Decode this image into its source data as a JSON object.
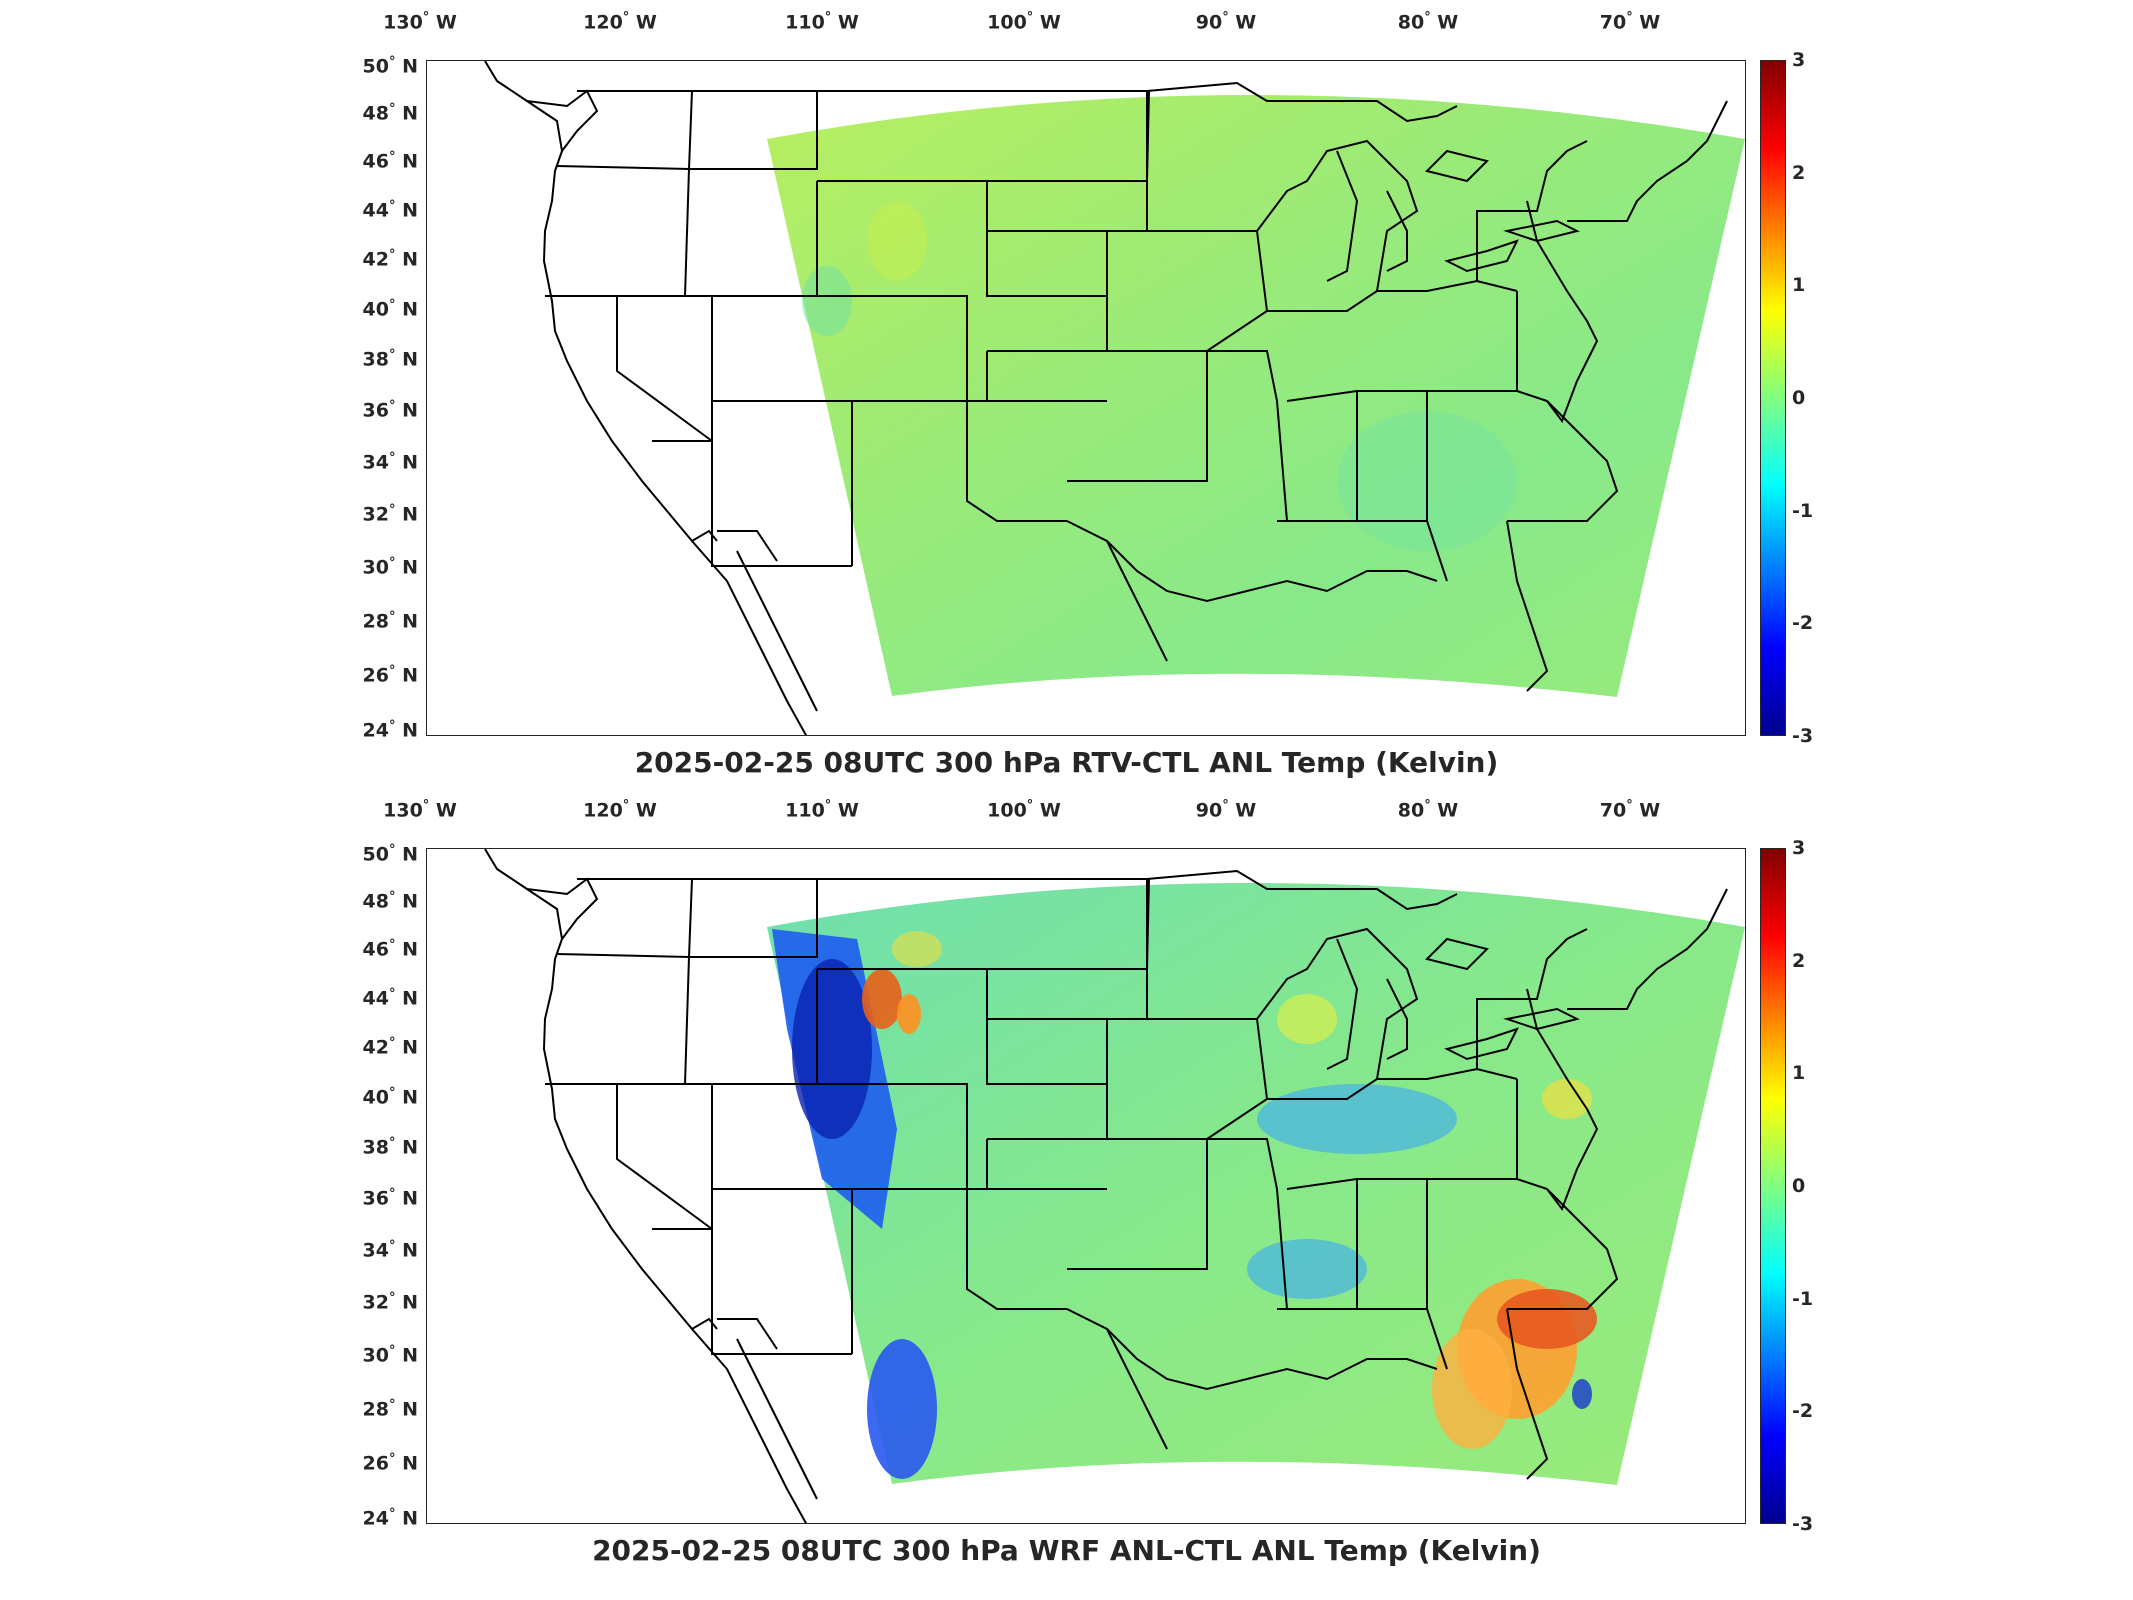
{
  "panels": [
    {
      "title": "2025-02-25 08UTC 300 hPa RTV-CTL ANL Temp (Kelvin)",
      "field_style": "uniform"
    },
    {
      "title": "2025-02-25 08UTC 300 hPa WRF ANL-CTL ANL Temp (Kelvin)",
      "field_style": "varied"
    }
  ],
  "lon_labels": [
    "130",
    "120",
    "110",
    "100",
    "90",
    "80",
    "70"
  ],
  "lon_suffix": "W",
  "lat_labels": [
    "50",
    "48",
    "46",
    "44",
    "42",
    "40",
    "38",
    "36",
    "34",
    "32",
    "30",
    "28",
    "26",
    "24"
  ],
  "lat_suffix": "N",
  "degree_symbol": "°",
  "colorbar": {
    "ticks": [
      "3",
      "2",
      "1",
      "0",
      "-1",
      "-2",
      "-3"
    ],
    "colormap": "jet",
    "colors": [
      "#800000",
      "#ff0000",
      "#ff8000",
      "#ffff00",
      "#80ff80",
      "#00ffff",
      "#0080ff",
      "#0000ff",
      "#00008f"
    ]
  }
}
